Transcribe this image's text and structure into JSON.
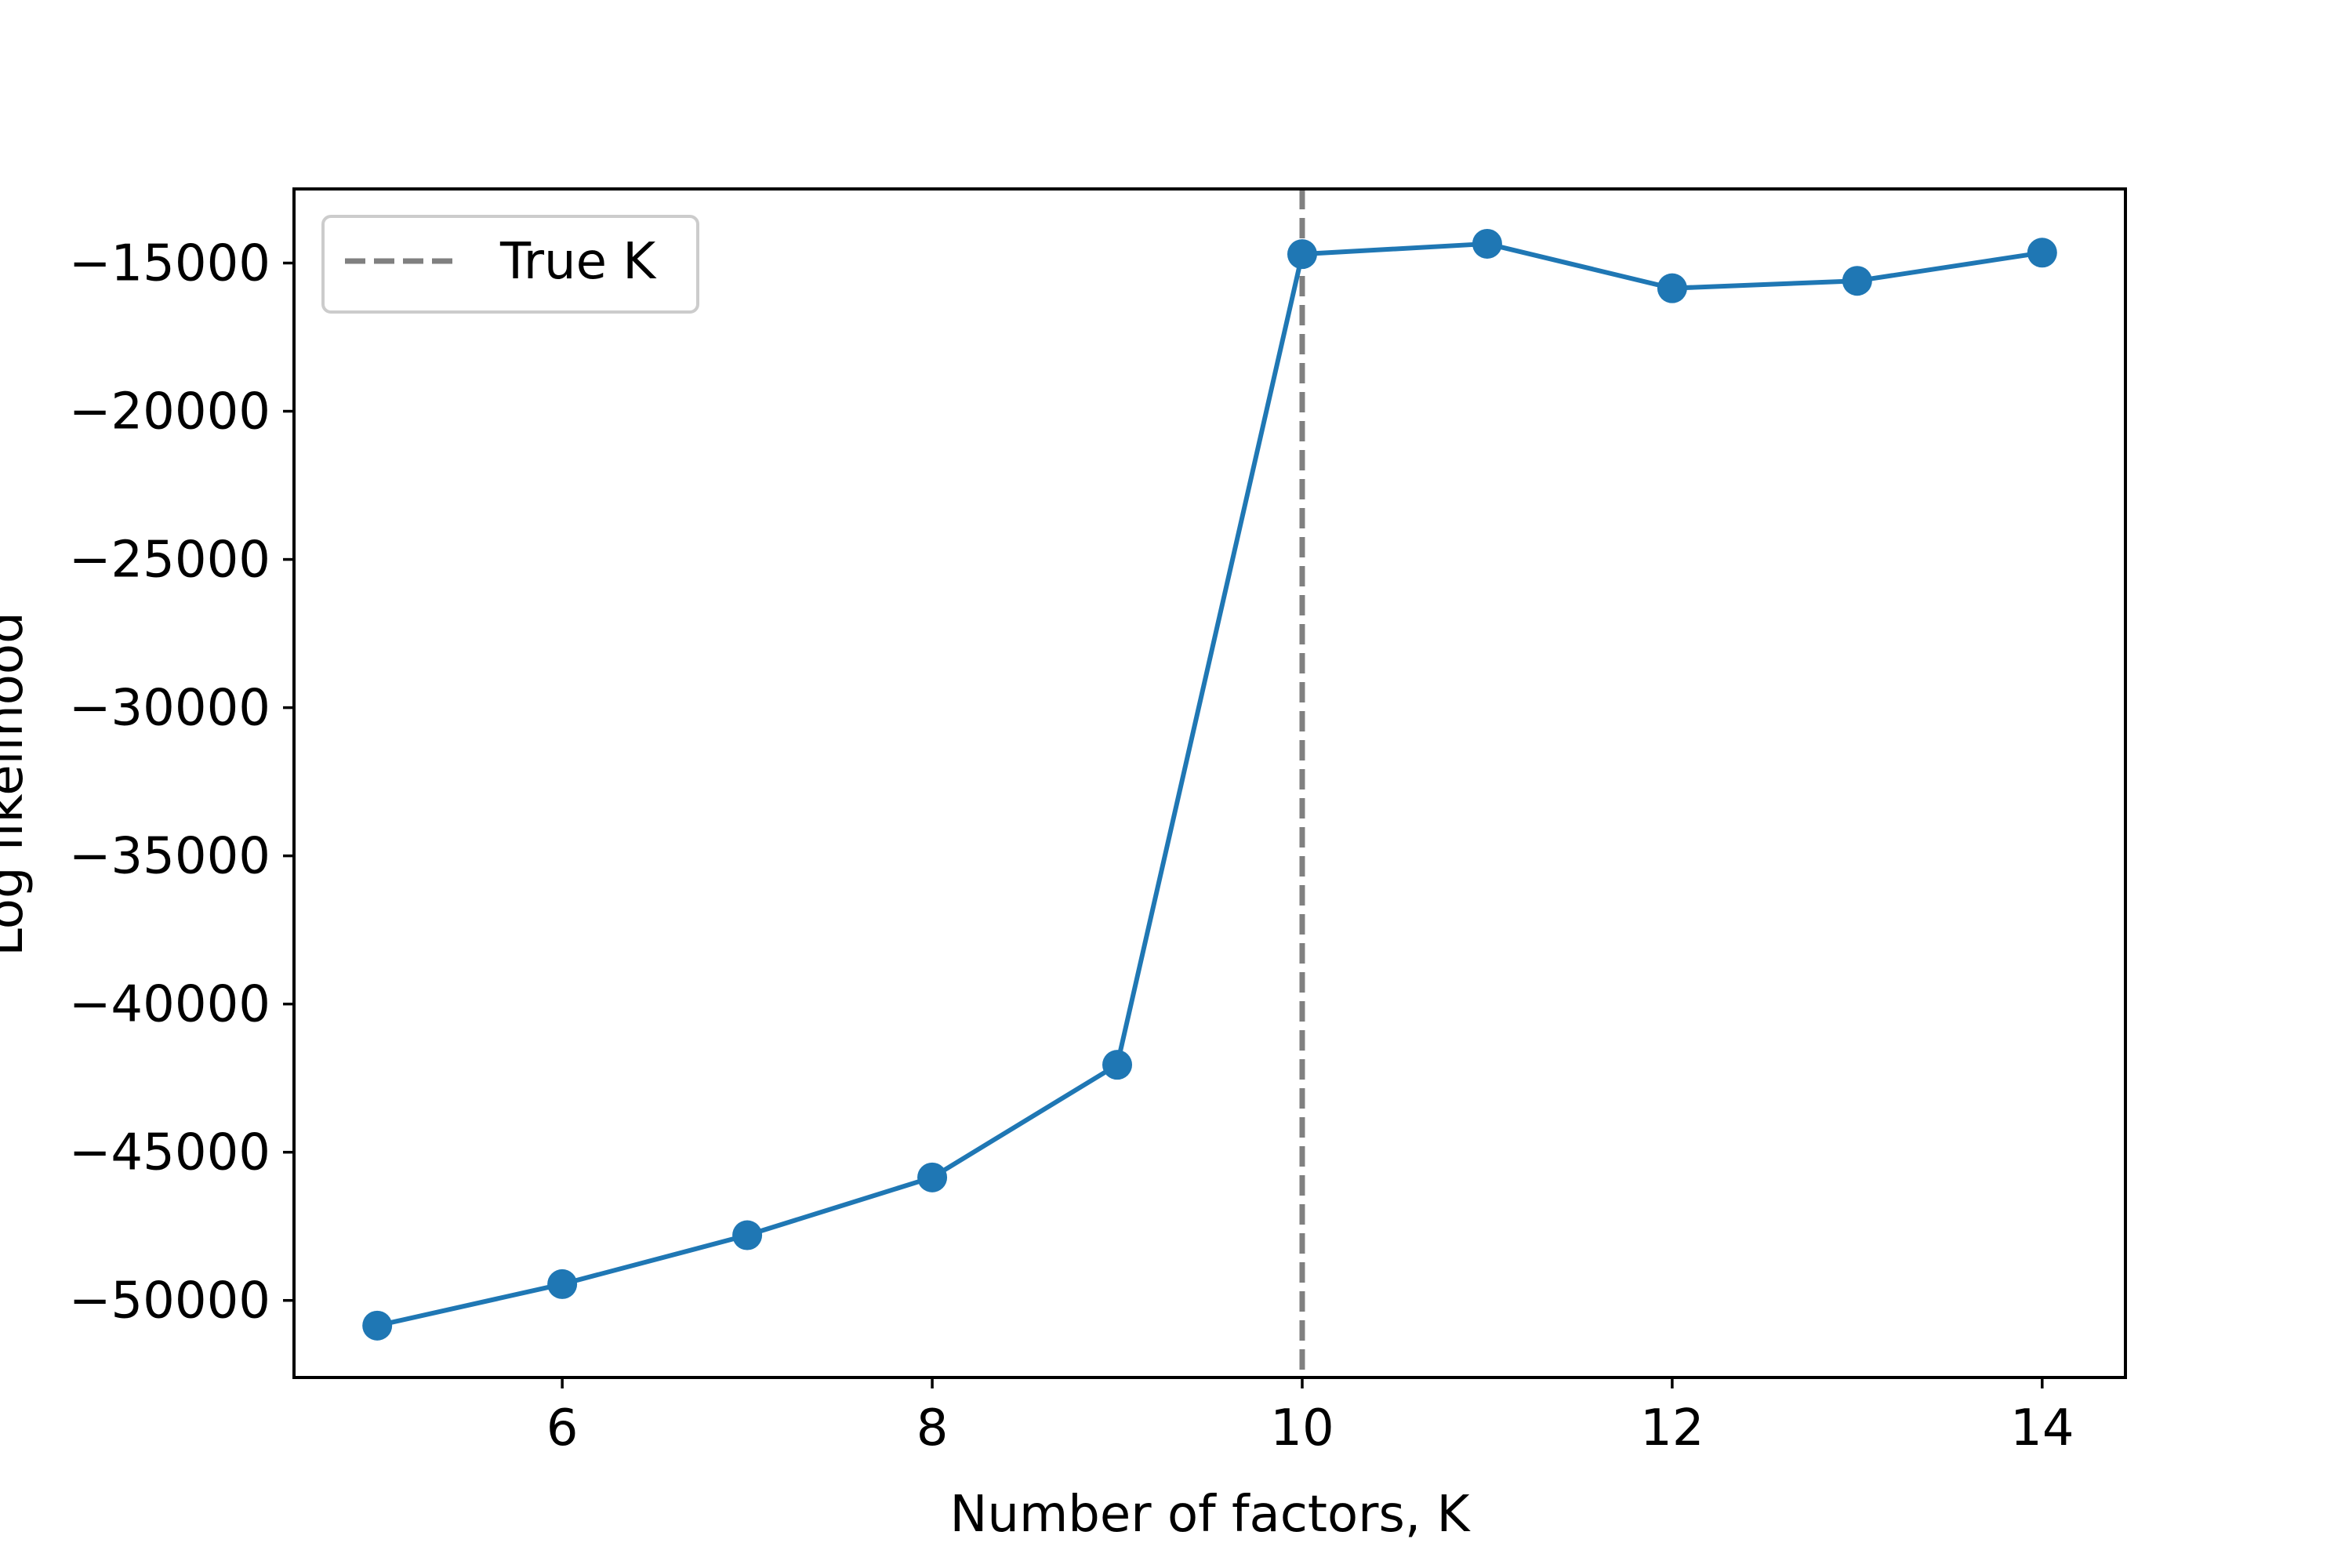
{
  "chart_data": {
    "type": "line",
    "title": "",
    "xlabel": "Number of factors, K",
    "ylabel": "Log likelihood",
    "xlim": [
      4.55,
      14.45
    ],
    "ylim": [
      -52600,
      -12500
    ],
    "xticks": [
      6,
      8,
      10,
      12,
      14
    ],
    "xtick_labels": [
      "6",
      "8",
      "10",
      "12",
      "14"
    ],
    "yticks": [
      -50000,
      -45000,
      -40000,
      -35000,
      -30000,
      -25000,
      -20000,
      -15000
    ],
    "ytick_labels": [
      "−50000",
      "−45000",
      "−40000",
      "−35000",
      "−30000",
      "−25000",
      "−20000",
      "−15000"
    ],
    "grid": false,
    "legend_position": "upper-left",
    "series": [
      {
        "x": [
          5,
          6,
          7,
          8,
          9,
          10,
          11,
          12,
          13,
          14
        ],
        "y": [
          -50850,
          -49450,
          -47800,
          -45850,
          -42050,
          -14700,
          -14350,
          -15850,
          -15600,
          -14650
        ],
        "color": "#1f77b4",
        "marker": "circle"
      }
    ],
    "reference_lines": [
      {
        "orientation": "vertical",
        "x": 10,
        "style": "dashed",
        "color": "#808080",
        "label": "True K"
      }
    ]
  }
}
